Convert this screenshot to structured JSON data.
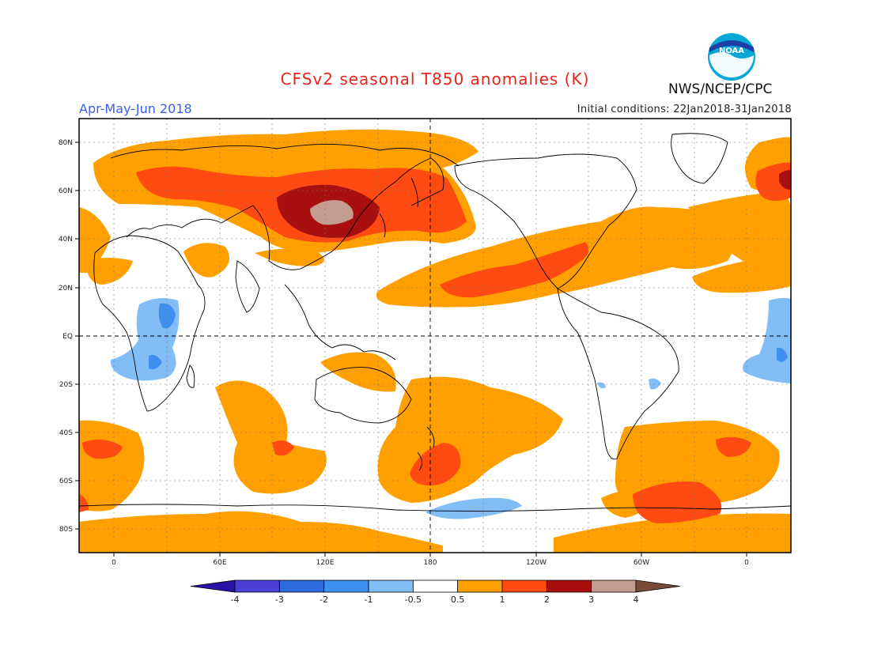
{
  "header": {
    "title": "CFSv2 seasonal T850 anomalies (K)",
    "season": "Apr-May-Jun 2018",
    "initial_conditions": "Initial conditions: 22Jan2018-31Jan2018",
    "agency": "NWS/NCEP/CPC",
    "logo_text": "NOAA"
  },
  "map": {
    "lat_labels": [
      "80N",
      "60N",
      "40N",
      "20N",
      "EQ",
      "20S",
      "40S",
      "60S",
      "80S"
    ],
    "lon_labels": [
      "0",
      "60E",
      "120E",
      "180",
      "120W",
      "60W",
      "0"
    ]
  },
  "colorbar": {
    "tick_labels": [
      "-4",
      "-3",
      "-2",
      "-1",
      "-0.5",
      "0.5",
      "1",
      "2",
      "3",
      "4"
    ],
    "colors": [
      "#2a12a8",
      "#4a40d6",
      "#2f6be0",
      "#3f8ff0",
      "#82bef5",
      "#ffffff",
      "#ffa000",
      "#ff4a12",
      "#a80f0f",
      "#c59d90",
      "#7a4a3a"
    ]
  }
}
